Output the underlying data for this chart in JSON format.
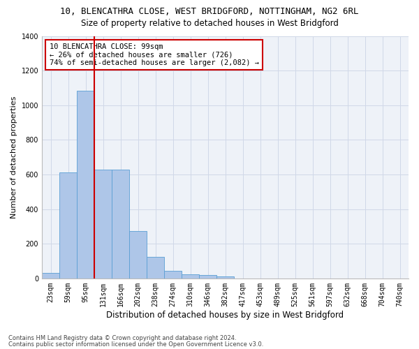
{
  "title1": "10, BLENCATHRA CLOSE, WEST BRIDGFORD, NOTTINGHAM, NG2 6RL",
  "title2": "Size of property relative to detached houses in West Bridgford",
  "xlabel": "Distribution of detached houses by size in West Bridgford",
  "ylabel": "Number of detached properties",
  "bin_labels": [
    "23sqm",
    "59sqm",
    "95sqm",
    "131sqm",
    "166sqm",
    "202sqm",
    "238sqm",
    "274sqm",
    "310sqm",
    "346sqm",
    "382sqm",
    "417sqm",
    "453sqm",
    "489sqm",
    "525sqm",
    "561sqm",
    "597sqm",
    "632sqm",
    "668sqm",
    "704sqm",
    "740sqm"
  ],
  "bar_values": [
    30,
    612,
    1085,
    630,
    630,
    275,
    125,
    42,
    23,
    18,
    10,
    0,
    0,
    0,
    0,
    0,
    0,
    0,
    0,
    0,
    0
  ],
  "bar_color": "#aec6e8",
  "bar_edge_color": "#5a9fd4",
  "vline_color": "#cc0000",
  "vline_bin_index": 2,
  "annotation_text": "10 BLENCATHRA CLOSE: 99sqm\n← 26% of detached houses are smaller (726)\n74% of semi-detached houses are larger (2,082) →",
  "annotation_box_color": "#cc0000",
  "ylim": [
    0,
    1400
  ],
  "yticks": [
    0,
    200,
    400,
    600,
    800,
    1000,
    1200,
    1400
  ],
  "grid_color": "#d0d8e8",
  "background_color": "#eef2f8",
  "footnote1": "Contains HM Land Registry data © Crown copyright and database right 2024.",
  "footnote2": "Contains public sector information licensed under the Open Government Licence v3.0.",
  "title1_fontsize": 9,
  "title2_fontsize": 8.5,
  "xlabel_fontsize": 8.5,
  "ylabel_fontsize": 8,
  "tick_fontsize": 7,
  "annot_fontsize": 7.5,
  "footnote_fontsize": 6
}
